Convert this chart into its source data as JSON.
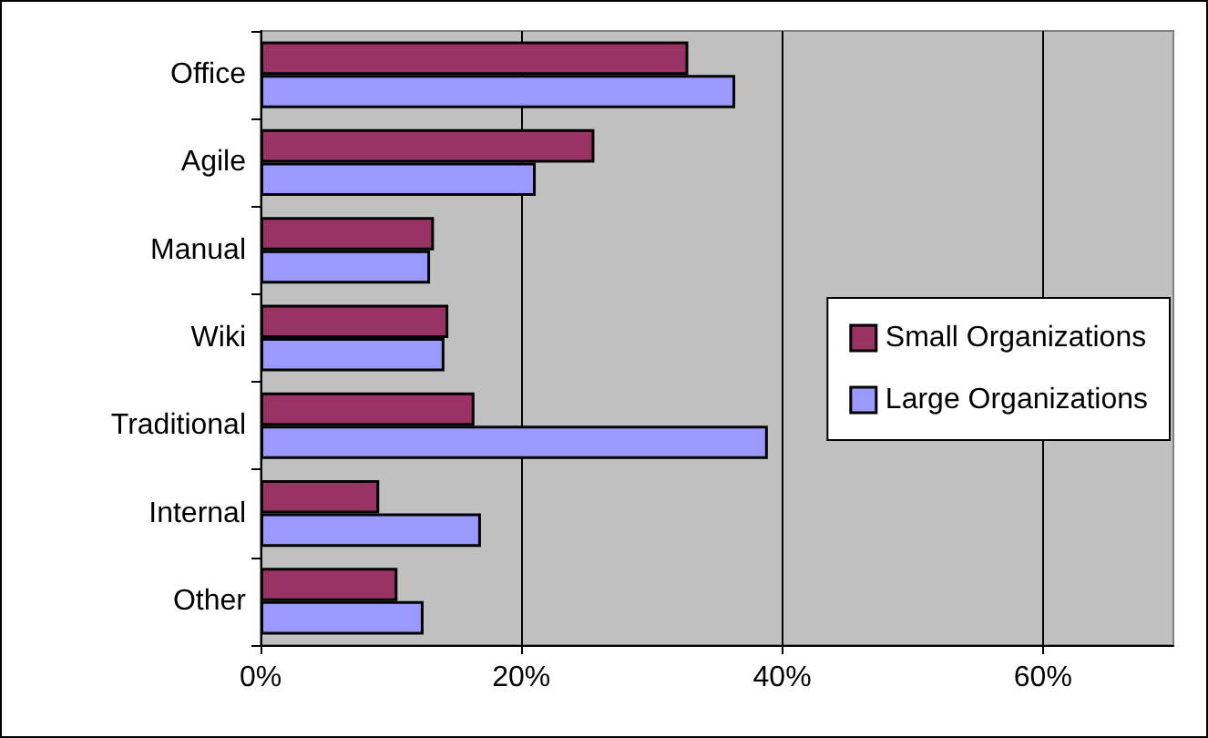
{
  "chart_data": {
    "type": "bar",
    "orientation": "horizontal",
    "categories": [
      "Office",
      "Agile",
      "Manual",
      "Wiki",
      "Traditional",
      "Internal",
      "Other"
    ],
    "series": [
      {
        "name": "Small Organizations",
        "color": "#993366",
        "values": [
          32.8,
          25.6,
          13.3,
          14.4,
          16.4,
          9.1,
          10.5
        ]
      },
      {
        "name": "Large Organizations",
        "color": "#9999ff",
        "values": [
          36.4,
          21.1,
          13.0,
          14.1,
          38.9,
          16.9,
          12.5
        ]
      }
    ],
    "xlim": [
      0,
      70
    ],
    "xticks": [
      {
        "value": 0,
        "label": "0%"
      },
      {
        "value": 20,
        "label": "20%"
      },
      {
        "value": 40,
        "label": "40%"
      },
      {
        "value": 60,
        "label": "60%"
      }
    ],
    "grid": "x",
    "legend": "right"
  }
}
